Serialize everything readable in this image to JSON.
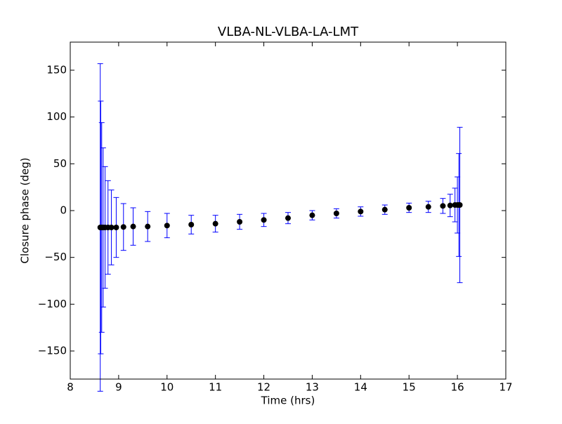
{
  "chart_data": {
    "type": "errorbar",
    "title": "VLBA-NL-VLBA-LA-LMT",
    "xlabel": "Time (hrs)",
    "ylabel": "Closure phase (deg)",
    "x": [
      8.62,
      8.63,
      8.65,
      8.68,
      8.72,
      8.78,
      8.85,
      8.95,
      9.1,
      9.3,
      9.6,
      10.0,
      10.5,
      11.0,
      11.5,
      12.0,
      12.5,
      13.0,
      13.5,
      14.0,
      14.5,
      15.0,
      15.4,
      15.7,
      15.85,
      15.95,
      16.0,
      16.03,
      16.05
    ],
    "values": [
      -18,
      -18,
      -18,
      -18,
      -18,
      -18,
      -18,
      -18,
      -17.5,
      -17,
      -17,
      -16,
      -15,
      -14,
      -12,
      -10,
      -8,
      -5,
      -3,
      -1,
      1,
      3,
      4,
      5,
      5.5,
      6,
      6,
      6,
      6
    ],
    "errors": [
      175,
      135,
      112,
      85,
      65,
      50,
      40,
      32,
      25,
      20,
      16,
      13,
      10,
      9,
      8,
      7,
      6,
      5,
      5,
      5,
      5,
      5,
      6,
      8,
      12,
      18,
      30,
      55,
      83
    ],
    "marker_color": "#000000",
    "error_color": "#0000ff",
    "xlim": [
      8,
      17
    ],
    "xticks": [
      8,
      9,
      10,
      11,
      12,
      13,
      14,
      15,
      16,
      17
    ],
    "ylim": [
      -180,
      180
    ],
    "yticks": [
      {
        "value": -150,
        "label": "−150"
      },
      {
        "value": -100,
        "label": "−100"
      },
      {
        "value": -50,
        "label": "−50"
      },
      0,
      50,
      100,
      150
    ]
  }
}
